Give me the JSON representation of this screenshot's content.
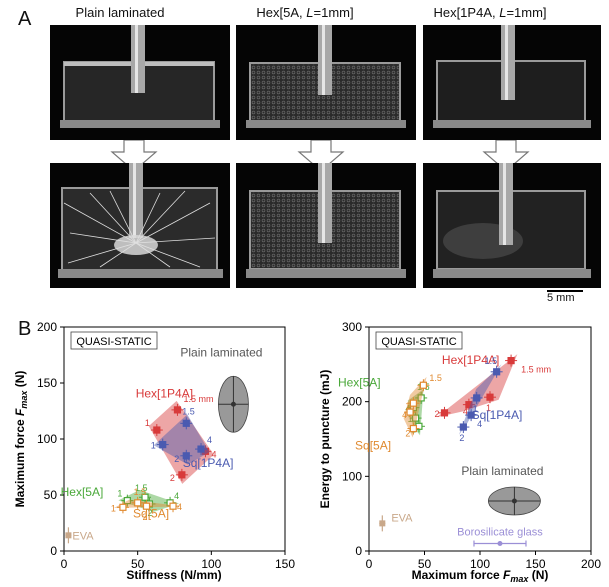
{
  "panel_a": {
    "letter": "A",
    "columns": [
      {
        "title_pre": "Plain laminated",
        "title_em": "",
        "title_post": ""
      },
      {
        "title_pre": "Hex[5A, ",
        "title_em": "L",
        "title_post": "=1mm]"
      },
      {
        "title_pre": "Hex[1P4A, ",
        "title_em": "L",
        "title_post": "=1mm]"
      }
    ],
    "scale_bar": "5 mm"
  },
  "panel_b": {
    "letter": "B"
  },
  "chart_data": [
    {
      "type": "scatter",
      "badge": "QUASI-STATIC",
      "xlabel": "Stiffness (N/mm)",
      "ylabel_pre": "Maximum force ",
      "ylabel_sym": "F",
      "ylabel_sub": "max",
      "ylabel_post": " (N)",
      "xlim": [
        0,
        150
      ],
      "ylim": [
        0,
        200
      ],
      "xticks": [
        "0",
        "50",
        "100",
        "150"
      ],
      "yticks": [
        "0",
        "50",
        "100",
        "150",
        "200"
      ],
      "groups": [
        {
          "name": "Plain laminated",
          "color": "#777777",
          "x": 115,
          "y": 131
        },
        {
          "name": "Hex[1P4A]",
          "color": "#d83a3a",
          "points": [
            {
              "label": "1.5 mm",
              "x": 77,
              "y": 126
            },
            {
              "label": "1",
              "x": 63,
              "y": 108
            },
            {
              "label": "2",
              "x": 80,
              "y": 68
            },
            {
              "label": "4",
              "x": 96,
              "y": 89
            }
          ]
        },
        {
          "name": "Sq[1P4A]",
          "color": "#4a5ab0",
          "points": [
            {
              "label": "1.5",
              "x": 83,
              "y": 114
            },
            {
              "label": "1",
              "x": 67,
              "y": 95
            },
            {
              "label": "2",
              "x": 83,
              "y": 85
            },
            {
              "label": "4",
              "x": 93,
              "y": 91
            }
          ]
        },
        {
          "name": "Hex[5A]",
          "color": "#4aa83a",
          "points": [
            {
              "label": "1.5",
              "x": 55,
              "y": 48
            },
            {
              "label": "1",
              "x": 43,
              "y": 45
            },
            {
              "label": "4",
              "x": 72,
              "y": 43
            },
            {
              "label": "2",
              "x": 58,
              "y": 42
            }
          ]
        },
        {
          "name": "Sq[5A]",
          "color": "#e08a30",
          "points": [
            {
              "label": "1.5",
              "x": 50,
              "y": 43
            },
            {
              "label": "1",
              "x": 40,
              "y": 39
            },
            {
              "label": "2",
              "x": 56,
              "y": 40
            },
            {
              "label": "4",
              "x": 74,
              "y": 40
            }
          ]
        },
        {
          "name": "EVA",
          "color": "#c9a88a",
          "x": 3,
          "y": 14
        }
      ]
    },
    {
      "type": "scatter",
      "badge": "QUASI-STATIC",
      "xlabel_pre": "Maximum force ",
      "xlabel_sym": "F",
      "xlabel_sub": "max",
      "xlabel_post": " (N)",
      "ylabel": "Energy to puncture (mJ)",
      "xlim": [
        0,
        200
      ],
      "ylim": [
        0,
        300
      ],
      "xticks": [
        "0",
        "50",
        "100",
        "150",
        "200"
      ],
      "yticks": [
        "0",
        "100",
        "200",
        "300"
      ],
      "groups": [
        {
          "name": "Hex[1P4A]",
          "color": "#d83a3a",
          "points": [
            {
              "label": "1.5 mm",
              "x": 128,
              "y": 255
            },
            {
              "label": "1",
              "x": 109,
              "y": 206
            },
            {
              "label": "2",
              "x": 68,
              "y": 185
            },
            {
              "label": "4",
              "x": 90,
              "y": 196
            }
          ]
        },
        {
          "name": "Sq[1P4A]",
          "color": "#4a5ab0",
          "points": [
            {
              "label": "1.5",
              "x": 115,
              "y": 240
            },
            {
              "label": "1",
              "x": 97,
              "y": 205
            },
            {
              "label": "4",
              "x": 92,
              "y": 182
            },
            {
              "label": "2",
              "x": 85,
              "y": 166
            }
          ]
        },
        {
          "name": "Hex[5A]",
          "color": "#4aa83a",
          "points": [
            {
              "label": "1.5",
              "x": 47,
              "y": 205
            },
            {
              "label": "4",
              "x": 40,
              "y": 192
            },
            {
              "label": "1",
              "x": 42,
              "y": 178
            },
            {
              "label": "2",
              "x": 45,
              "y": 167
            }
          ]
        },
        {
          "name": "Sq[5A]",
          "color": "#e08a30",
          "points": [
            {
              "label": "1.5",
              "x": 49,
              "y": 222
            },
            {
              "label": "1",
              "x": 40,
              "y": 198
            },
            {
              "label": "4",
              "x": 37,
              "y": 186
            },
            {
              "label": "2",
              "x": 40,
              "y": 164
            }
          ]
        },
        {
          "name": "Plain laminated",
          "color": "#777777",
          "x": 131,
          "y": 67
        },
        {
          "name": "EVA",
          "color": "#c9a88a",
          "x": 12,
          "y": 37
        },
        {
          "name": "Borosilicate glass",
          "color": "#9b8fd6",
          "x": 118,
          "y": 10
        }
      ]
    }
  ]
}
